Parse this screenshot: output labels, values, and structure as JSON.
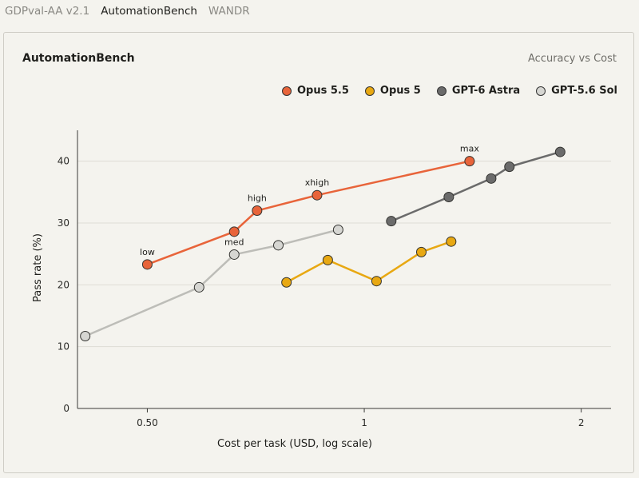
{
  "tabs": [
    {
      "label": "GDPval-AA v2.1",
      "active": false
    },
    {
      "label": "AutomationBench",
      "active": true
    },
    {
      "label": "WANDR",
      "active": false
    }
  ],
  "card": {
    "title": "AutomationBench",
    "subtitle": "Accuracy vs Cost"
  },
  "chart_data": {
    "type": "scatter",
    "title": "AutomationBench",
    "subtitle": "Accuracy vs Cost",
    "xlabel": "Cost per task (USD, log scale)",
    "ylabel": "Pass rate (%)",
    "xscale": "log",
    "xlim": [
      0.4,
      2.2
    ],
    "ylim": [
      0,
      45
    ],
    "xticks": [
      {
        "value": 0.5,
        "label": "0.50"
      },
      {
        "value": 1,
        "label": "1"
      },
      {
        "value": 2,
        "label": "2"
      }
    ],
    "yticks": [
      0,
      10,
      20,
      30,
      40
    ],
    "grid": "horizontal",
    "legend_position": "top-right",
    "series": [
      {
        "name": "Opus 5.5",
        "color": "#e8643a",
        "line_color": "#e8643a",
        "points": [
          {
            "x": 0.5,
            "y": 23.3,
            "label": "low"
          },
          {
            "x": 0.66,
            "y": 28.6,
            "label": ""
          },
          {
            "x": 0.71,
            "y": 32.0,
            "label": "high"
          },
          {
            "x": 0.86,
            "y": 34.5,
            "label": "xhigh"
          },
          {
            "x": 1.4,
            "y": 40.0,
            "label": "max"
          }
        ]
      },
      {
        "name": "Opus 5",
        "color": "#e8a812",
        "line_color": "#e8a812",
        "points": [
          {
            "x": 0.78,
            "y": 20.4,
            "label": ""
          },
          {
            "x": 0.89,
            "y": 24.0,
            "label": ""
          },
          {
            "x": 1.04,
            "y": 20.6,
            "label": ""
          },
          {
            "x": 1.2,
            "y": 25.3,
            "label": ""
          },
          {
            "x": 1.32,
            "y": 27.0,
            "label": ""
          }
        ]
      },
      {
        "name": "GPT-6 Astra",
        "color": "#6b6b6b",
        "line_color": "#6b6b6b",
        "points": [
          {
            "x": 1.09,
            "y": 30.3,
            "label": ""
          },
          {
            "x": 1.31,
            "y": 34.2,
            "label": ""
          },
          {
            "x": 1.5,
            "y": 37.2,
            "label": ""
          },
          {
            "x": 1.59,
            "y": 39.1,
            "label": ""
          },
          {
            "x": 1.87,
            "y": 41.5,
            "label": ""
          }
        ]
      },
      {
        "name": "GPT-5.6 Sol",
        "color": "#d6d6d2",
        "line_color": "#bdbdb8",
        "points": [
          {
            "x": 0.41,
            "y": 11.7,
            "label": ""
          },
          {
            "x": 0.59,
            "y": 19.6,
            "label": ""
          },
          {
            "x": 0.66,
            "y": 24.9,
            "label": "med"
          },
          {
            "x": 0.76,
            "y": 26.4,
            "label": ""
          },
          {
            "x": 0.92,
            "y": 28.9,
            "label": ""
          }
        ]
      }
    ]
  }
}
